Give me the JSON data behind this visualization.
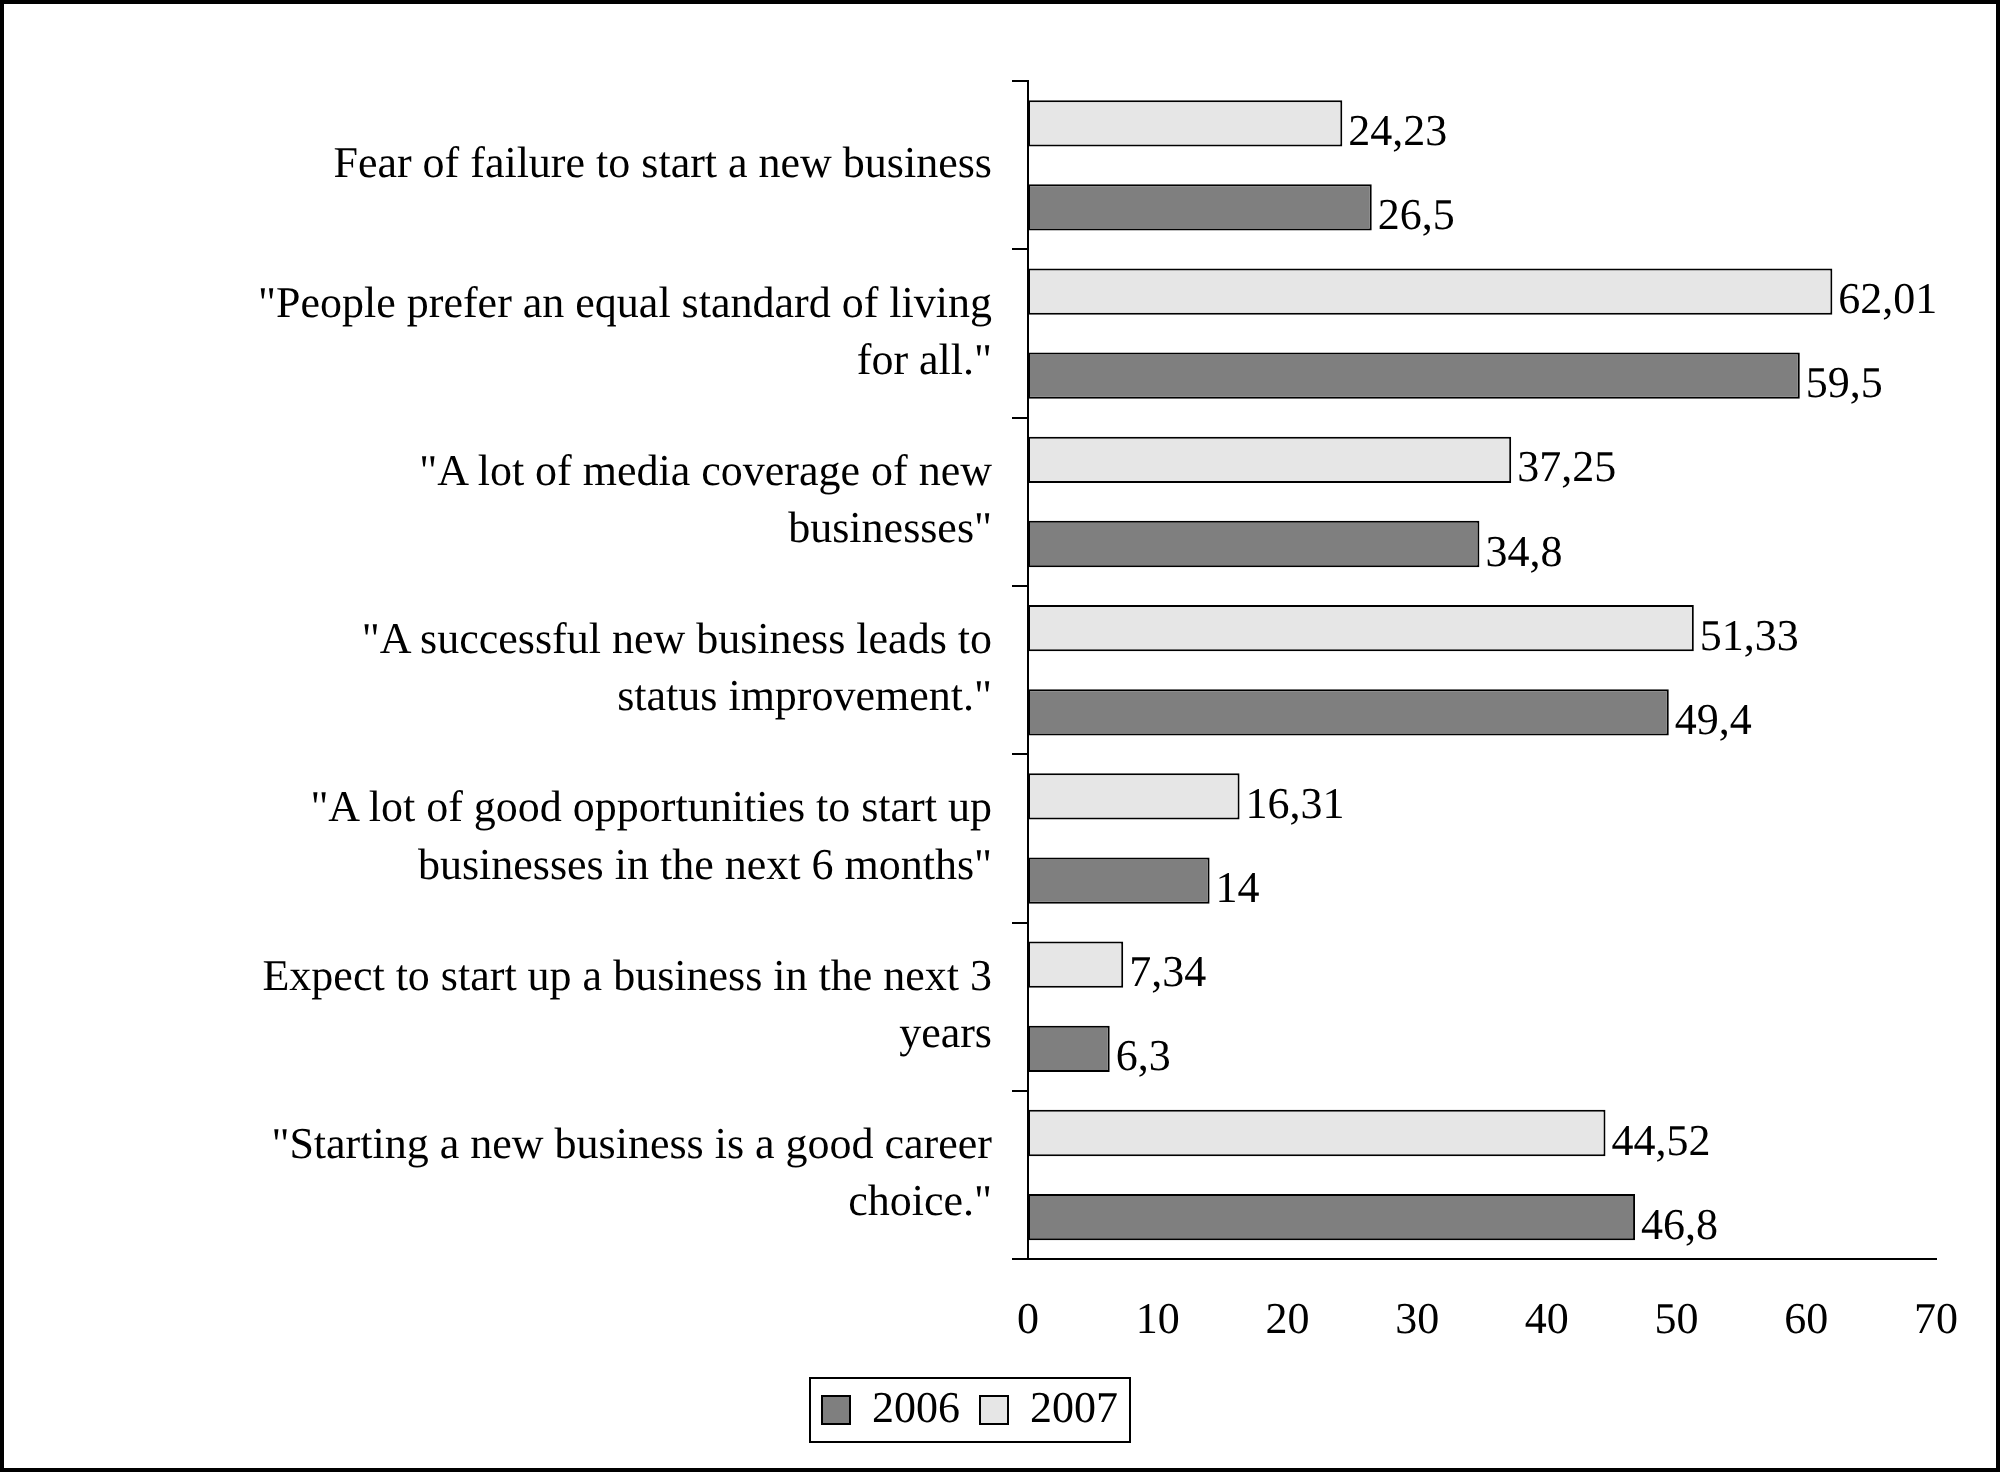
{
  "chart_data": {
    "type": "bar",
    "orientation": "horizontal",
    "categories": [
      "Fear of failure to start a new business",
      "\"People prefer an equal standard of living for all.\"",
      "\"A lot of media coverage of new businesses\"",
      "\"A successful new business leads to status improvement.\"",
      "\"A lot of good opportunities to start up businesses in the next 6 months\"",
      "Expect to start up a business in the next 3 years",
      "\"Starting a new business is a good career choice.\""
    ],
    "series": [
      {
        "name": "2006",
        "color": "#7f7f7f",
        "values": [
          26.5,
          59.5,
          34.8,
          49.4,
          14,
          6.3,
          46.8
        ],
        "value_labels": [
          "26,5",
          "59,5",
          "34,8",
          "49,4",
          "14",
          "6,3",
          "46,8"
        ]
      },
      {
        "name": "2007",
        "color": "#e6e6e6",
        "values": [
          24.23,
          62.01,
          37.25,
          51.33,
          16.31,
          7.34,
          44.52
        ],
        "value_labels": [
          "24,23",
          "62,01",
          "37,25",
          "51,33",
          "16,31",
          "7,34",
          "44,52"
        ]
      }
    ],
    "xlim": [
      0,
      70
    ],
    "xticks": [
      0,
      10,
      20,
      30,
      40,
      50,
      60,
      70
    ],
    "grid": false,
    "legend": "bottom"
  }
}
